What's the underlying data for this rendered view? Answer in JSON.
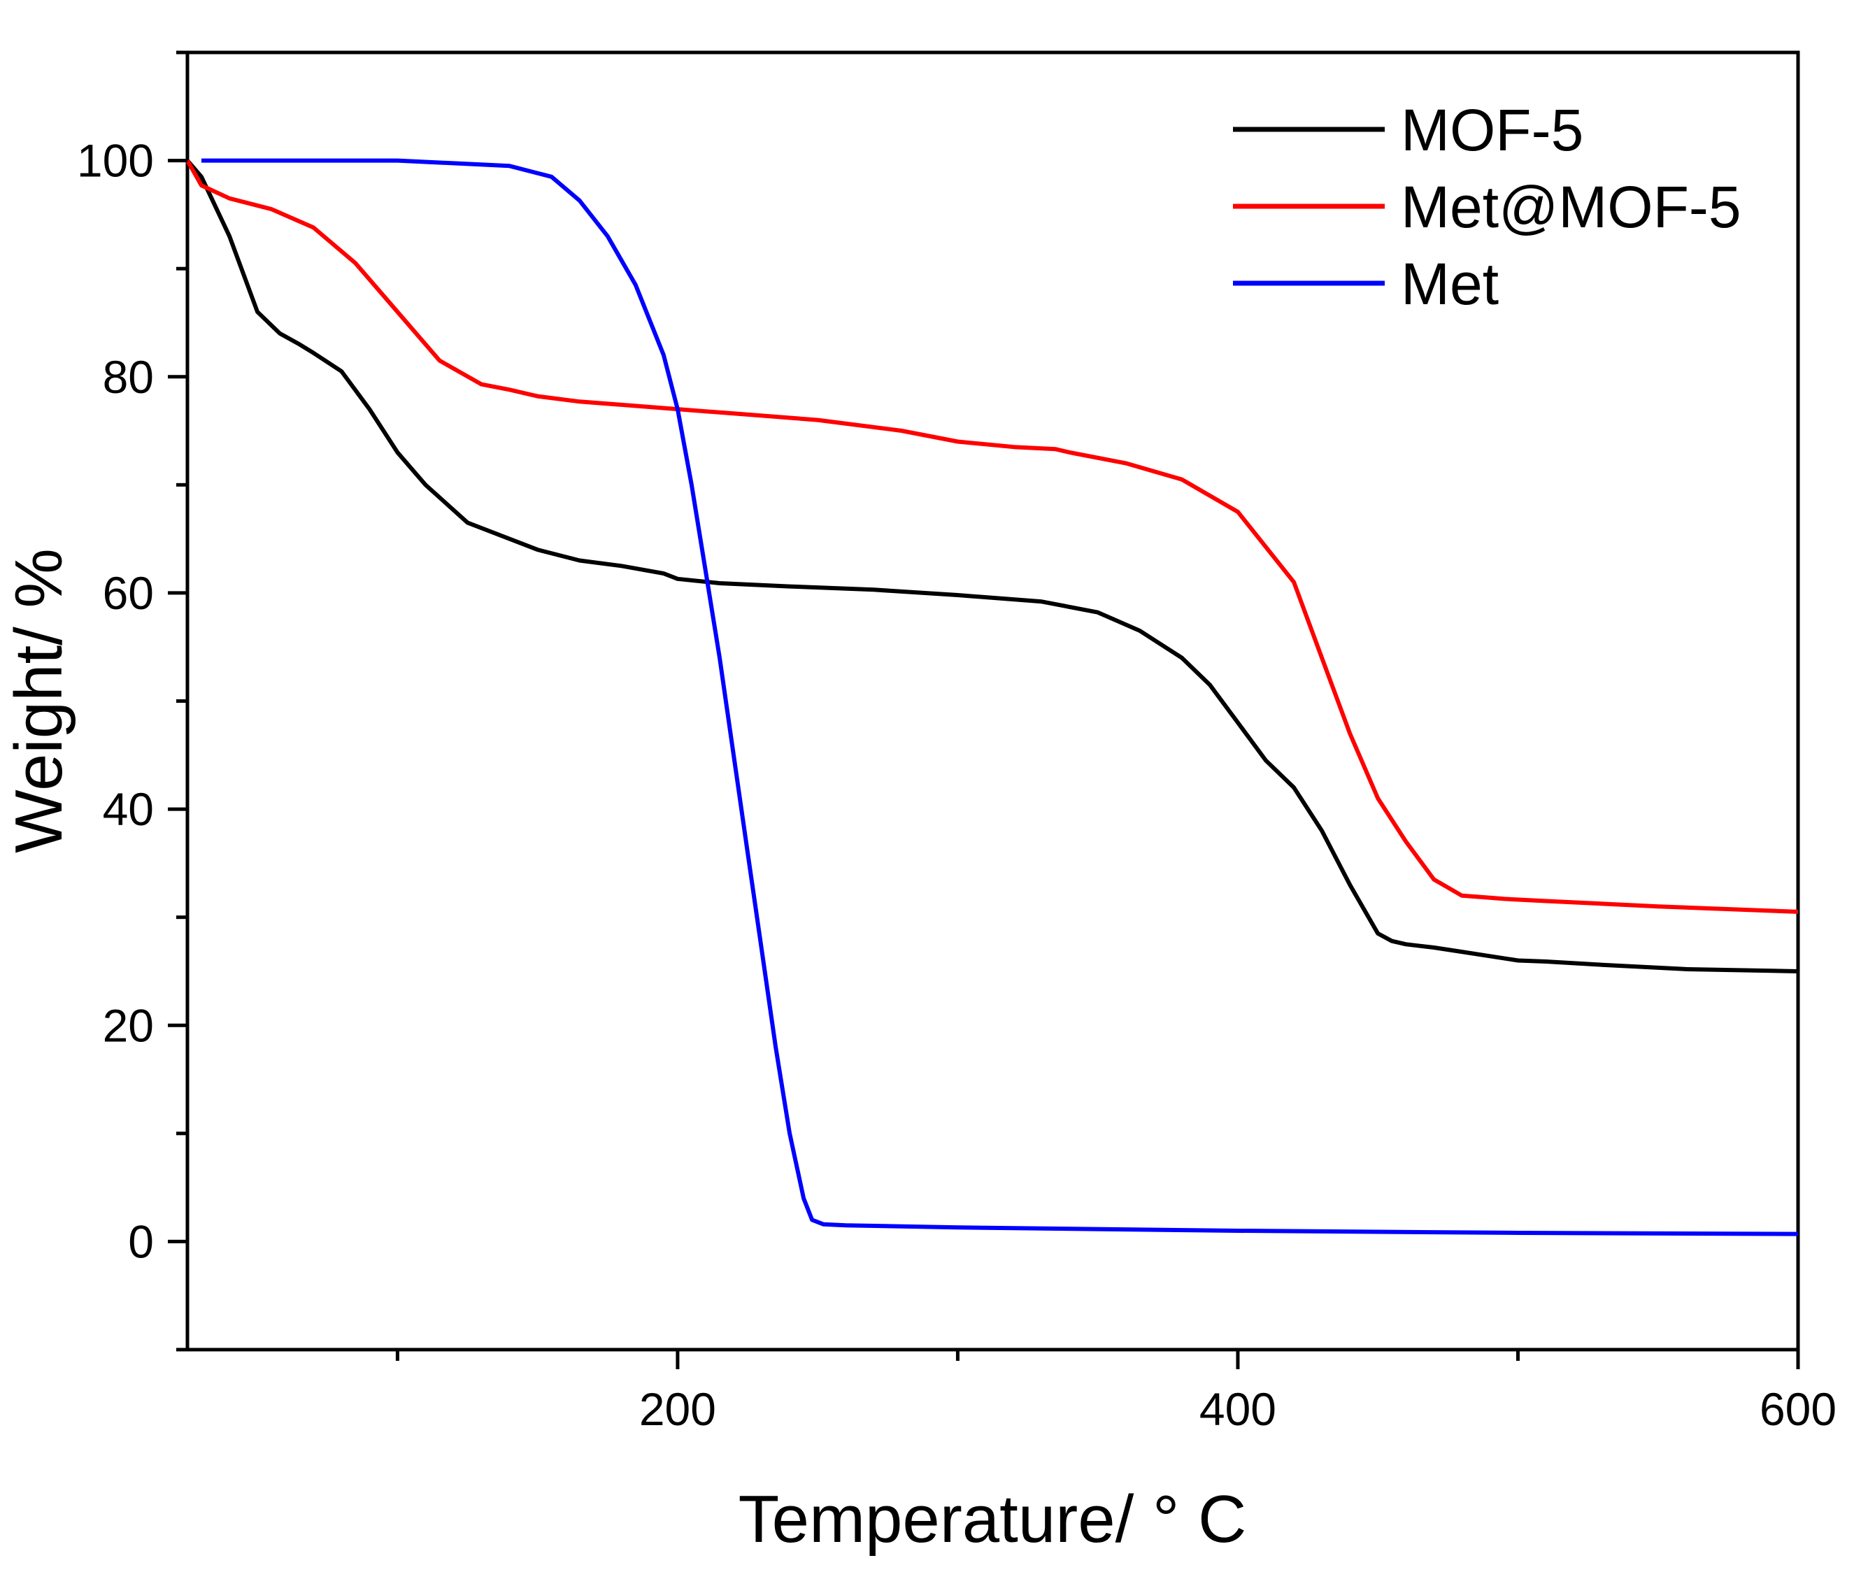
{
  "chart_data": {
    "type": "line",
    "title": "",
    "xlabel": "Temperature/ ° C",
    "ylabel": "Weight/ %",
    "xlim": [
      25,
      600
    ],
    "ylim": [
      -10,
      110
    ],
    "xticks": [
      200,
      400,
      600
    ],
    "xminor": [
      100,
      300,
      500
    ],
    "yticks": [
      0,
      20,
      40,
      60,
      80,
      100
    ],
    "yminor": [
      -10,
      10,
      30,
      50,
      70,
      90,
      110
    ],
    "grid": false,
    "legend_position": "top-right",
    "series": [
      {
        "name": "MOF-5",
        "color": "#000000",
        "x": [
          25,
          30,
          40,
          50,
          58,
          65,
          70,
          80,
          90,
          100,
          110,
          125,
          150,
          165,
          180,
          195,
          200,
          215,
          240,
          270,
          300,
          330,
          350,
          365,
          380,
          390,
          400,
          410,
          420,
          430,
          440,
          450,
          455,
          460,
          470,
          480,
          490,
          500,
          510,
          530,
          560,
          600
        ],
        "y": [
          100,
          98.5,
          93,
          86,
          84,
          83,
          82.2,
          80.5,
          77,
          73,
          70,
          66.5,
          64,
          63,
          62.5,
          61.8,
          61.3,
          60.9,
          60.6,
          60.3,
          59.8,
          59.2,
          58.2,
          56.5,
          54,
          51.5,
          48,
          44.5,
          42,
          38,
          33,
          28.5,
          27.8,
          27.5,
          27.2,
          26.8,
          26.4,
          26,
          25.9,
          25.6,
          25.2,
          25
        ]
      },
      {
        "name": "Met@MOF-5",
        "color": "#ff0000",
        "x": [
          25,
          30,
          40,
          55,
          70,
          85,
          100,
          115,
          130,
          140,
          150,
          165,
          180,
          200,
          220,
          250,
          280,
          300,
          320,
          335,
          340,
          360,
          380,
          400,
          420,
          430,
          440,
          450,
          460,
          470,
          480,
          490,
          495,
          510,
          550,
          600
        ],
        "y": [
          100,
          97.7,
          96.5,
          95.5,
          93.8,
          90.5,
          86,
          81.5,
          79.3,
          78.8,
          78.2,
          77.7,
          77.4,
          77,
          76.6,
          76,
          75,
          74,
          73.5,
          73.3,
          73,
          72,
          70.5,
          67.5,
          61,
          54,
          47,
          41,
          37,
          33.5,
          32,
          31.8,
          31.7,
          31.5,
          31,
          30.5
        ]
      },
      {
        "name": "Met",
        "color": "#0000ff",
        "x": [
          30,
          60,
          100,
          140,
          155,
          165,
          175,
          185,
          195,
          200,
          205,
          210,
          215,
          220,
          225,
          230,
          235,
          240,
          245,
          248,
          250,
          252,
          260,
          300,
          400,
          500,
          600
        ],
        "y": [
          100,
          100,
          100,
          99.5,
          98.5,
          96.3,
          93,
          88.5,
          82,
          77,
          70,
          62,
          54,
          45,
          36,
          27,
          18,
          10,
          4,
          2,
          1.8,
          1.6,
          1.5,
          1.3,
          1,
          0.8,
          0.7
        ]
      }
    ]
  }
}
